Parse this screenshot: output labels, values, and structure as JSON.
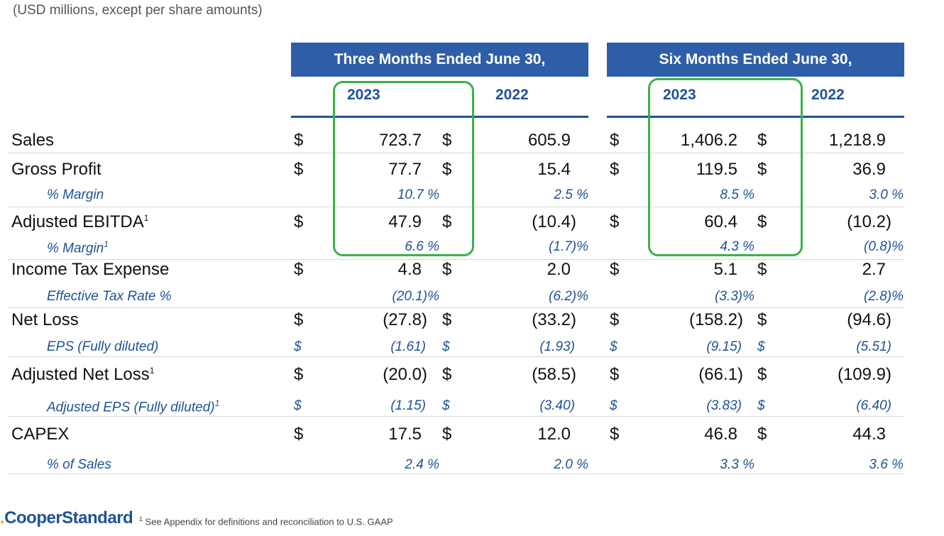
{
  "units_note": "(USD millions, except per share amounts)",
  "headers": {
    "three_months": "Three Months Ended June 30,",
    "six_months": "Six Months Ended June 30,",
    "y1": "2023",
    "y2": "2022",
    "y3": "2023",
    "y4": "2022"
  },
  "currency": "$",
  "rows": {
    "sales": {
      "label": "Sales",
      "v": [
        "723.7",
        "605.9",
        "1,406.2",
        "1,218.9"
      ]
    },
    "gross_profit": {
      "label": "Gross Profit",
      "v": [
        "77.7",
        "15.4",
        "119.5",
        "36.9"
      ]
    },
    "gp_margin": {
      "label": "% Margin",
      "v": [
        "10.7 %",
        "2.5 %",
        "8.5 %",
        "3.0 %"
      ]
    },
    "adj_ebitda": {
      "label": "Adjusted EBITDA",
      "sup": "1",
      "v": [
        "47.9",
        "(10.4)",
        "60.4",
        "(10.2)"
      ]
    },
    "ebitda_margin": {
      "label": "% Margin",
      "sup": "1",
      "v": [
        "6.6 %",
        "(1.7)%",
        "4.3 %",
        "(0.8)%"
      ]
    },
    "income_tax": {
      "label": "Income Tax Expense",
      "v": [
        "4.8",
        "2.0",
        "5.1",
        "2.7"
      ]
    },
    "eff_tax": {
      "label": "Effective Tax Rate %",
      "v": [
        "(20.1)%",
        "(6.2)%",
        "(3.3)%",
        "(2.8)%"
      ]
    },
    "net_loss": {
      "label": "Net Loss",
      "v": [
        "(27.8)",
        "(33.2)",
        "(158.2)",
        "(94.6)"
      ]
    },
    "eps": {
      "label": "EPS (Fully diluted)",
      "v": [
        "(1.61)",
        "(1.93)",
        "(9.15)",
        "(5.51)"
      ]
    },
    "adj_net_loss": {
      "label": "Adjusted Net Loss",
      "sup": "1",
      "v": [
        "(20.0)",
        "(58.5)",
        "(66.1)",
        "(109.9)"
      ]
    },
    "adj_eps": {
      "label": "Adjusted EPS (Fully diluted)",
      "sup": "1",
      "v": [
        "(1.15)",
        "(3.40)",
        "(3.83)",
        "(6.40)"
      ]
    },
    "capex": {
      "label": "CAPEX",
      "v": [
        "17.5",
        "12.0",
        "46.8",
        "44.3"
      ]
    },
    "pct_sales": {
      "label": "% of Sales",
      "v": [
        "2.4 %",
        "2.0 %",
        "3.3 %",
        "3.6 %"
      ]
    }
  },
  "footer": {
    "logo_mark": ".",
    "logo": "CooperStandard",
    "note_sup": "1",
    "note": " See Appendix for definitions and reconciliation to U.S. GAAP"
  },
  "colors": {
    "header_blue": "#2f5ea8",
    "text_blue": "#1f5296",
    "highlight_green": "#3db04a"
  }
}
